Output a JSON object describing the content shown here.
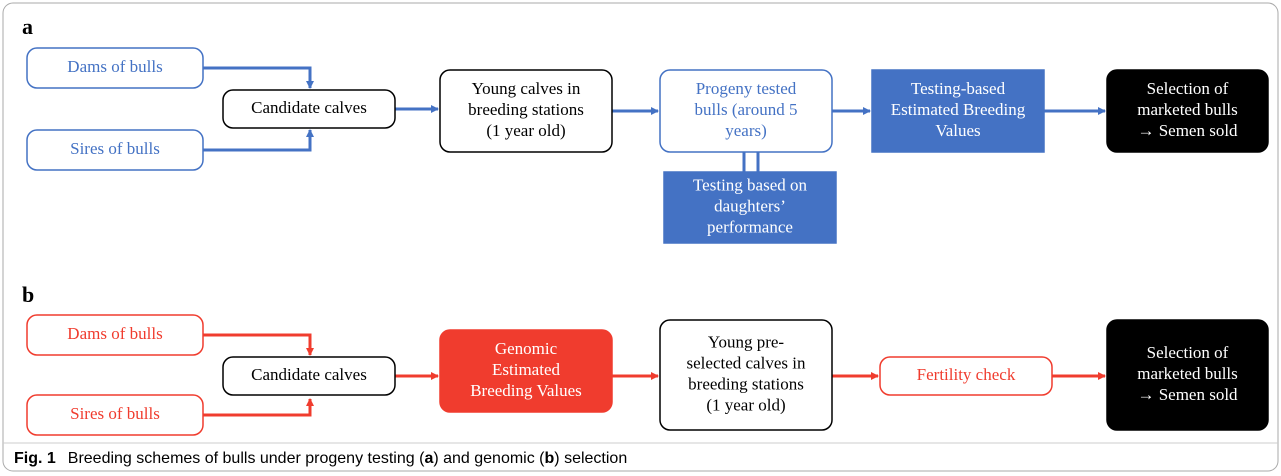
{
  "panels": [
    {
      "label": "a",
      "nodes": [
        {
          "lines": [
            "Dams of bulls"
          ]
        },
        {
          "lines": [
            "Sires of bulls"
          ]
        },
        {
          "lines": [
            "Candidate calves"
          ]
        },
        {
          "lines": [
            "Young calves in",
            "breeding stations",
            "(1 year old)"
          ]
        },
        {
          "lines": [
            "Progeny tested",
            "bulls (around 5",
            "years)"
          ]
        },
        {
          "lines": [
            "Testing-based",
            "Estimated Breeding",
            "Values"
          ]
        },
        {
          "lines": [
            "Selection of",
            "marketed bulls",
            "→ Semen sold"
          ]
        },
        {
          "lines": [
            "Testing based on",
            "daughters’",
            "performance"
          ]
        }
      ]
    },
    {
      "label": "b",
      "nodes": [
        {
          "lines": [
            "Dams of bulls"
          ]
        },
        {
          "lines": [
            "Sires of bulls"
          ]
        },
        {
          "lines": [
            "Candidate calves"
          ]
        },
        {
          "lines": [
            "Genomic",
            "Estimated",
            "Breeding Values"
          ]
        },
        {
          "lines": [
            "Young pre-",
            "selected calves in",
            "breeding stations",
            "(1 year old)"
          ]
        },
        {
          "lines": [
            "Fertility check"
          ]
        },
        {
          "lines": [
            "Selection of",
            "marketed bulls",
            "→ Semen sold"
          ]
        }
      ]
    }
  ],
  "caption": {
    "label": "Fig. 1",
    "parts": [
      "Breeding schemes of bulls under progeny testing (",
      "a",
      ") and genomic (",
      "b",
      ") selection"
    ]
  }
}
